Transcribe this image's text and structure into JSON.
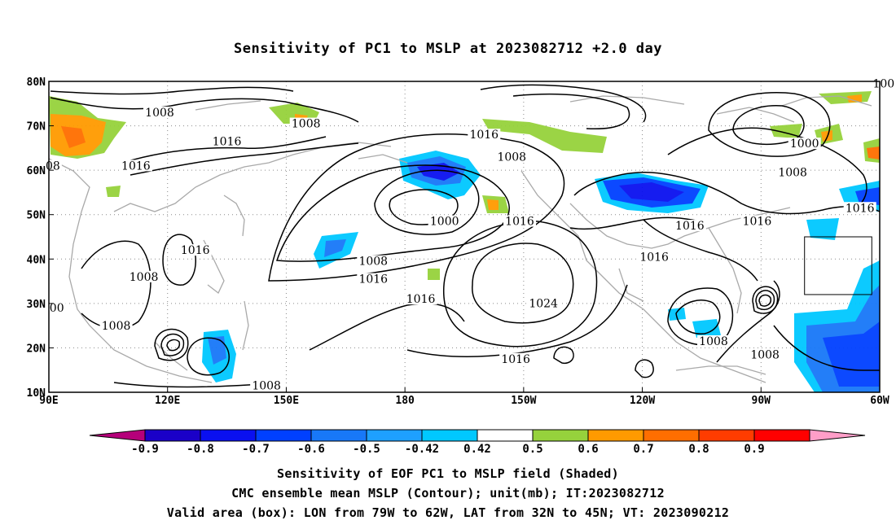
{
  "title": "Sensitivity of PC1 to MSLP at 2023082712 +2.0 day",
  "lat_ticks": [
    "80N",
    "70N",
    "60N",
    "50N",
    "40N",
    "30N",
    "20N",
    "10N"
  ],
  "lon_ticks": [
    "90E",
    "120E",
    "150E",
    "180",
    "150W",
    "120W",
    "90W",
    "60W"
  ],
  "contour_labels": [
    {
      "text": "1008",
      "lon": 118,
      "lat": 72.5
    },
    {
      "text": "1008",
      "lon": 155,
      "lat": 70
    },
    {
      "text": "1016",
      "lon": 135,
      "lat": 66
    },
    {
      "text": "1016",
      "lon": 112,
      "lat": 60.5
    },
    {
      "text": "1008",
      "lon": -153,
      "lat": 62.5
    },
    {
      "text": "1016",
      "lon": -160,
      "lat": 67.5
    },
    {
      "text": "1000",
      "lon": -79,
      "lat": 65.5
    },
    {
      "text": "1008",
      "lon": -82,
      "lat": 59
    },
    {
      "text": "1000",
      "lon": -170,
      "lat": 48
    },
    {
      "text": "1016",
      "lon": -151,
      "lat": 48
    },
    {
      "text": "1016",
      "lon": -108,
      "lat": 47
    },
    {
      "text": "1016",
      "lon": -91,
      "lat": 48
    },
    {
      "text": "1016",
      "lon": -65,
      "lat": 51
    },
    {
      "text": "1016",
      "lon": 127,
      "lat": 41.5
    },
    {
      "text": "1016",
      "lon": -117,
      "lat": 40
    },
    {
      "text": "1008",
      "lon": 172,
      "lat": 39
    },
    {
      "text": "1016",
      "lon": 172,
      "lat": 35
    },
    {
      "text": "1008",
      "lon": 114,
      "lat": 35.5
    },
    {
      "text": "1016",
      "lon": -176,
      "lat": 30.5
    },
    {
      "text": "1024",
      "lon": -145,
      "lat": 29.5
    },
    {
      "text": "1008",
      "lon": 107,
      "lat": 24.5
    },
    {
      "text": "1008",
      "lon": -102,
      "lat": 21
    },
    {
      "text": "1008",
      "lon": -89,
      "lat": 18
    },
    {
      "text": "1016",
      "lon": -152,
      "lat": 17
    },
    {
      "text": "1008",
      "lon": 145,
      "lat": 11
    },
    {
      "text": "00",
      "lon": 92,
      "lat": 28.5
    },
    {
      "text": "08",
      "lon": 91,
      "lat": 60.5
    },
    {
      "text": "100",
      "lon": -59,
      "lat": 79
    }
  ],
  "colorbar": {
    "labels": [
      "-0.9",
      "-0.8",
      "-0.7",
      "-0.6",
      "-0.5",
      "-0.42",
      "0.42",
      "0.5",
      "0.6",
      "0.7",
      "0.8",
      "0.9"
    ],
    "colors": [
      "#b5007a",
      "#1a00c8",
      "#0a10f0",
      "#0040ff",
      "#1878f8",
      "#1ea0ff",
      "#00c8ff",
      "#ffffff",
      "#96d23c",
      "#ff9a00",
      "#ff6e00",
      "#ff3c00",
      "#ff0000",
      "#ff9ec8"
    ]
  },
  "valid_box": {
    "lon_w": -79,
    "lon_e": -62,
    "lat_s": 32,
    "lat_n": 45
  },
  "captions": [
    "Sensitivity of EOF PC1 to MSLP field (Shaded)",
    "CMC ensemble mean MSLP (Contour); unit(mb); IT:2023082712",
    "Valid area (box): LON from 79W to 62W, LAT from 32N to 45N; VT: 2023090212"
  ]
}
